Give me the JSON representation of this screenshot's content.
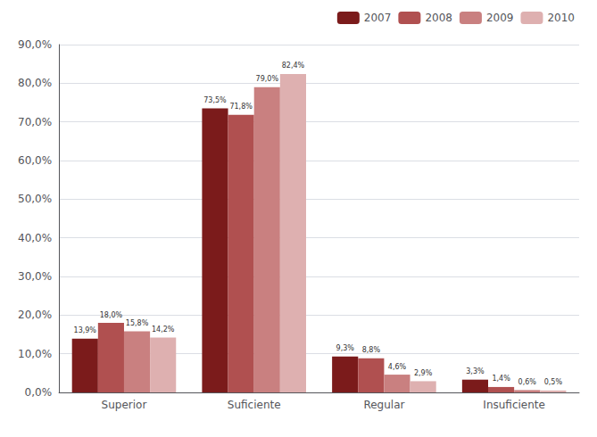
{
  "chart_data": {
    "type": "bar",
    "categories": [
      "Superior",
      "Suficiente",
      "Regular",
      "Insuficiente"
    ],
    "series": [
      {
        "name": "2007",
        "color": "#7B1B1B",
        "values": [
          13.9,
          73.5,
          9.3,
          3.3
        ],
        "value_labels": [
          "13,9%",
          "73,5%",
          "9,3%",
          "3,3%"
        ]
      },
      {
        "name": "2008",
        "color": "#B05050",
        "values": [
          18.0,
          71.8,
          8.8,
          1.4
        ],
        "value_labels": [
          "18,0%",
          "71,8%",
          "8,8%",
          "1,4%"
        ]
      },
      {
        "name": "2009",
        "color": "#C98080",
        "values": [
          15.8,
          79.0,
          4.6,
          0.6
        ],
        "value_labels": [
          "15,8%",
          "79,0%",
          "4,6%",
          "0,6%"
        ]
      },
      {
        "name": "2010",
        "color": "#DEB0B0",
        "values": [
          14.2,
          82.4,
          2.9,
          0.5
        ],
        "value_labels": [
          "14,2%",
          "82,4%",
          "2,9%",
          "0,5%"
        ]
      }
    ],
    "ylim": [
      0,
      90
    ],
    "yticks": [
      {
        "value": 0,
        "label": "0,0%"
      },
      {
        "value": 10,
        "label": "10,0%"
      },
      {
        "value": 20,
        "label": "20,0%"
      },
      {
        "value": 30,
        "label": "30,0%"
      },
      {
        "value": 40,
        "label": "40,0%"
      },
      {
        "value": 50,
        "label": "50,0%"
      },
      {
        "value": 60,
        "label": "60,0%"
      },
      {
        "value": 70,
        "label": "70,0%"
      },
      {
        "value": 80,
        "label": "80,0%"
      },
      {
        "value": 90,
        "label": "90,0%"
      }
    ],
    "grid": true,
    "legend": "upper right",
    "data_labels": true
  }
}
